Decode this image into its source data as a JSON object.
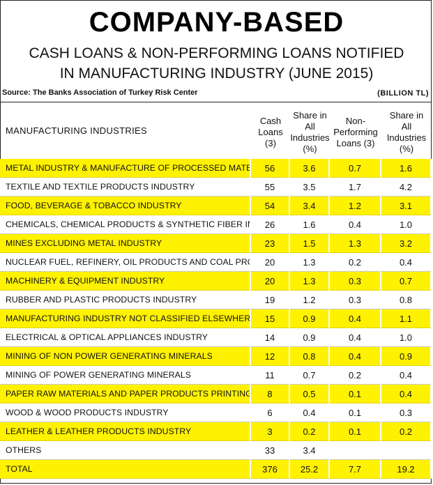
{
  "header": {
    "title": "COMPANY-BASED",
    "subtitle_line1": "CASH LOANS & NON-PERFORMING LOANS NOTIFIED",
    "subtitle_line2": "IN MANUFACTURING INDUSTRY (JUNE 2015)",
    "source": "Source: The Banks Association of Turkey Risk Center",
    "unit": "(BILLION TL)"
  },
  "table": {
    "columns": [
      "MANUFACTURING INDUSTRIES",
      "Cash\nLoans\n(3)",
      "Share in\nAll\nIndustries\n(%)",
      "Non-\nPerforming\nLoans (3)",
      "Share in\nAll\nIndustries\n(%)"
    ],
    "rows": [
      {
        "name": "METAL INDUSTRY & MANUFACTURE OF PROCESSED MATERIALS",
        "cash": "56",
        "share_cash": "3.6",
        "npl": "0.7",
        "share_npl": "1.6"
      },
      {
        "name": "TEXTILE AND TEXTILE PRODUCTS INDUSTRY",
        "cash": "55",
        "share_cash": "3.5",
        "npl": "1.7",
        "share_npl": "4.2"
      },
      {
        "name": "FOOD, BEVERAGE & TOBACCO INDUSTRY",
        "cash": "54",
        "share_cash": "3.4",
        "npl": "1.2",
        "share_npl": "3.1"
      },
      {
        "name": "CHEMICALS, CHEMICAL PRODUCTS & SYNTHETIC FIBER INDUSTRY",
        "cash": "26",
        "share_cash": "1.6",
        "npl": "0.4",
        "share_npl": "1.0"
      },
      {
        "name": "MINES EXCLUDING METAL INDUSTRY",
        "cash": "23",
        "share_cash": "1.5",
        "npl": "1.3",
        "share_npl": "3.2"
      },
      {
        "name": "NUCLEAR FUEL, REFINERY, OIL PRODUCTS AND COAL PRODUCTS",
        "cash": "20",
        "share_cash": "1.3",
        "npl": "0.2",
        "share_npl": "0.4"
      },
      {
        "name": "MACHINERY & EQUIPMENT INDUSTRY",
        "cash": "20",
        "share_cash": "1.3",
        "npl": "0.3",
        "share_npl": "0.7"
      },
      {
        "name": "RUBBER AND PLASTIC PRODUCTS INDUSTRY",
        "cash": "19",
        "share_cash": "1.2",
        "npl": "0.3",
        "share_npl": "0.8"
      },
      {
        "name": "MANUFACTURING INDUSTRY NOT CLASSIFIED ELSEWHERE",
        "cash": "15",
        "share_cash": "0.9",
        "npl": "0.4",
        "share_npl": "1.1"
      },
      {
        "name": "ELECTRICAL & OPTICAL APPLIANCES INDUSTRY",
        "cash": "14",
        "share_cash": "0.9",
        "npl": "0.4",
        "share_npl": "1.0"
      },
      {
        "name": "MINING OF NON POWER GENERATING MINERALS",
        "cash": "12",
        "share_cash": "0.8",
        "npl": "0.4",
        "share_npl": "0.9"
      },
      {
        "name": "MINING OF POWER GENERATING MINERALS",
        "cash": "11",
        "share_cash": "0.7",
        "npl": "0.2",
        "share_npl": "0.4"
      },
      {
        "name": "PAPER RAW MATERIALS AND PAPER PRODUCTS PRINTING INDUSTRY",
        "cash": "8",
        "share_cash": "0.5",
        "npl": "0.1",
        "share_npl": "0.4"
      },
      {
        "name": "WOOD & WOOD PRODUCTS INDUSTRY",
        "cash": "6",
        "share_cash": "0.4",
        "npl": "0.1",
        "share_npl": "0.3"
      },
      {
        "name": "LEATHER & LEATHER PRODUCTS INDUSTRY",
        "cash": "3",
        "share_cash": "0.2",
        "npl": "0.1",
        "share_npl": "0.2"
      },
      {
        "name": "OTHERS",
        "cash": "33",
        "share_cash": "3.4",
        "npl": "",
        "share_npl": ""
      },
      {
        "name": "TOTAL",
        "cash": "376",
        "share_cash": "25.2",
        "npl": "7.7",
        "share_npl": "19.2"
      }
    ]
  },
  "colors": {
    "highlight": "#fff200",
    "text": "#111111"
  }
}
